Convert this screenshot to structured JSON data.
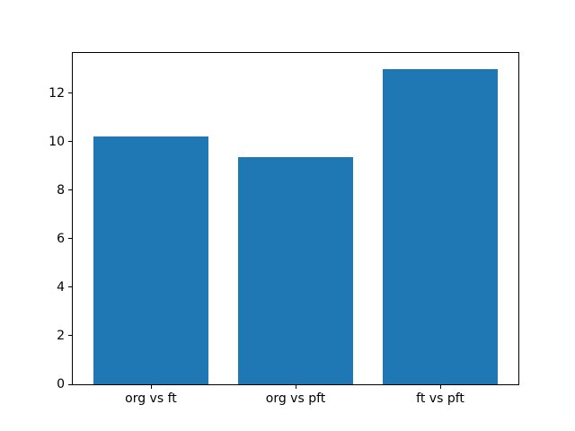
{
  "figure": {
    "background": "#ffffff",
    "text_color": "#000000"
  },
  "chart_data": {
    "type": "bar",
    "categories": [
      "org vs ft",
      "org vs pft",
      "ft vs pft"
    ],
    "values": [
      10.2,
      9.35,
      13.0
    ],
    "title": "",
    "xlabel": "",
    "ylabel": "",
    "ylim": [
      0,
      13.65
    ],
    "yticks": [
      0,
      2,
      4,
      6,
      8,
      10,
      12
    ],
    "bar_color": "#1f77b4",
    "bar_width_fraction": 0.8,
    "grid": false,
    "legend": null
  }
}
